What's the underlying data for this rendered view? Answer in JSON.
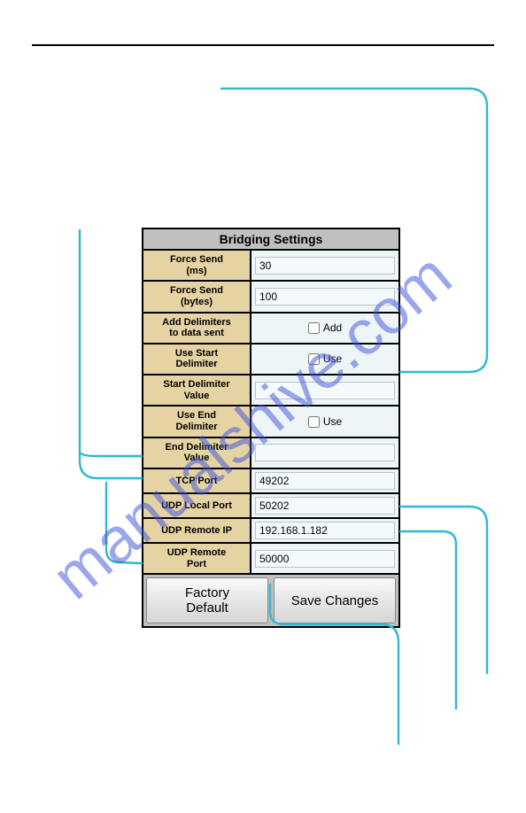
{
  "panel": {
    "title": "Bridging Settings",
    "rows": {
      "force_send_ms": {
        "label": "Force Send\n(ms)",
        "value": "30"
      },
      "force_send_bytes": {
        "label": "Force Send\n(bytes)",
        "value": "100"
      },
      "add_delimiters": {
        "label": "Add Delimiters\nto data sent",
        "checkbox_label": "Add",
        "checked": false
      },
      "use_start_delim": {
        "label": "Use Start\nDelimiter",
        "checkbox_label": "Use",
        "checked": false
      },
      "start_delim_value": {
        "label": "Start Delimiter\nValue",
        "value": ""
      },
      "use_end_delim": {
        "label": "Use End\nDelimiter",
        "checkbox_label": "Use",
        "checked": false
      },
      "end_delim_value": {
        "label": "End Delimiter\nValue",
        "value": ""
      },
      "tcp_port": {
        "label": "TCP Port",
        "value": "49202"
      },
      "udp_local_port": {
        "label": "UDP Local Port",
        "value": "50202"
      },
      "udp_remote_ip": {
        "label": "UDP Remote IP",
        "value": "192.168.1.182"
      },
      "udp_remote_port": {
        "label": "UDP Remote\nPort",
        "value": "50000"
      }
    },
    "buttons": {
      "factory_default": "Factory\nDefault",
      "save_changes": "Save Changes"
    }
  },
  "style": {
    "label_bg": "#e6d3a3",
    "value_bg": "#eef5f7",
    "header_bg": "#c0c0c0",
    "border_color": "#000000",
    "callout_color": "#2fb8d4",
    "watermark_color": "#3a4fd8",
    "watermark_opacity": 0.5,
    "watermark_text": "manualshive.com"
  }
}
